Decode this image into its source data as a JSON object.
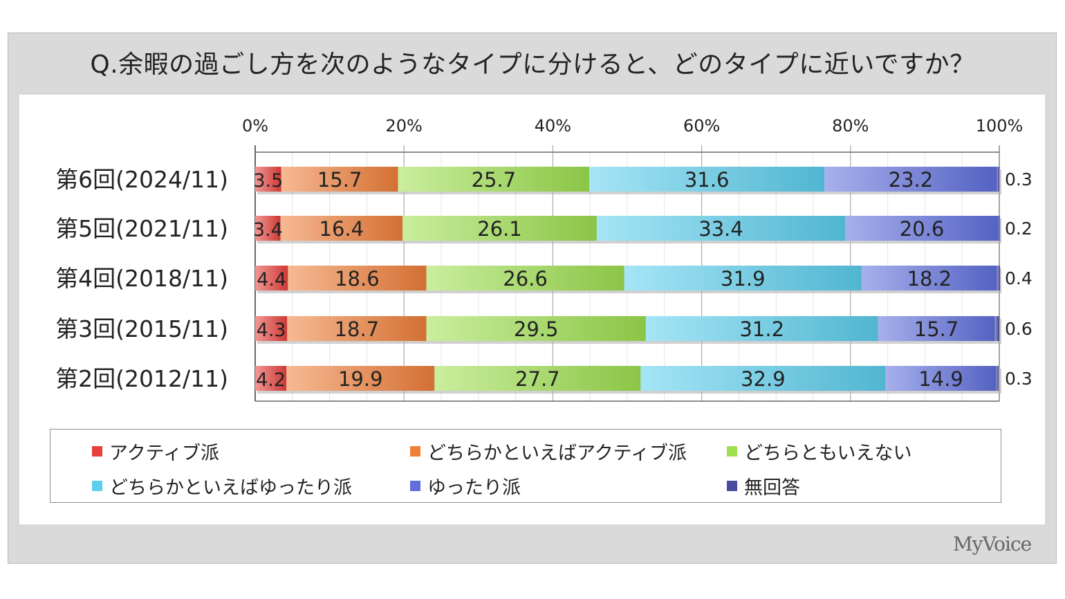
{
  "title": "Q.余暇の過ごし方を次のようなタイプに分けると、どのタイプに近いですか？",
  "brand": "MyVoice",
  "chart_data": {
    "type": "bar",
    "orientation": "horizontal",
    "stacked": "100%",
    "title": "Q.余暇の過ごし方を次のようなタイプに分けると、どのタイプに近いですか？",
    "categories": [
      "第6回(2024/11)",
      "第5回(2021/11)",
      "第4回(2018/11)",
      "第3回(2015/11)",
      "第2回(2012/11)"
    ],
    "x_ticks": [
      "0%",
      "20%",
      "40%",
      "60%",
      "80%",
      "100%"
    ],
    "xlim": [
      0,
      100
    ],
    "grid": true,
    "legend_position": "bottom",
    "series": [
      {
        "name": "アクティブ派",
        "color": "#e8413c",
        "values": [
          3.5,
          3.4,
          4.4,
          4.3,
          4.2
        ]
      },
      {
        "name": "どちらかといえばアクティブ派",
        "color": "#f07f3a",
        "values": [
          15.7,
          16.4,
          18.6,
          18.7,
          19.9
        ]
      },
      {
        "name": "どちらともいえない",
        "color": "#9ee04f",
        "values": [
          25.7,
          26.1,
          26.6,
          29.5,
          27.7
        ]
      },
      {
        "name": "どちらかといえばゆったり派",
        "color": "#5ccfee",
        "values": [
          31.6,
          33.4,
          31.9,
          31.2,
          32.9
        ]
      },
      {
        "name": "ゆったり派",
        "color": "#5f6fdc",
        "values": [
          23.2,
          20.6,
          18.2,
          15.7,
          14.9
        ]
      },
      {
        "name": "無回答",
        "color": "#4a4aa0",
        "values": [
          0.3,
          0.2,
          0.4,
          0.6,
          0.3
        ]
      }
    ]
  }
}
